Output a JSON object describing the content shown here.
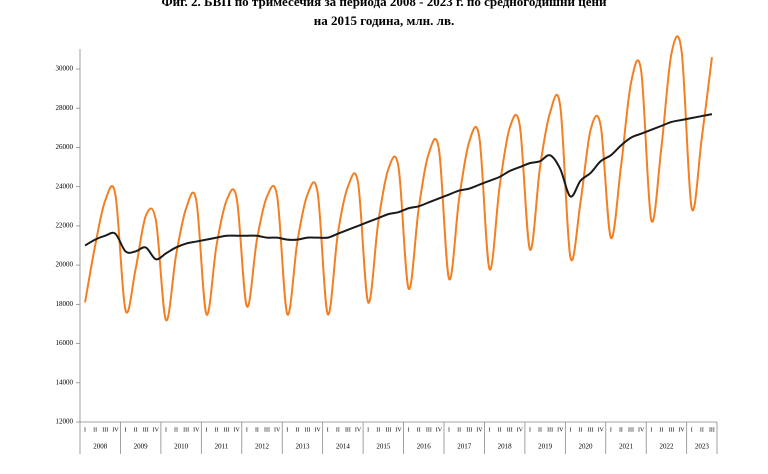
{
  "chart_data": {
    "type": "line",
    "title": [
      "Фиг. 2. БВП по тримесечия за периода 2008 - 2023 г. по средногодишни цени",
      "на 2015 година, млн. лв."
    ],
    "categories": [
      "I",
      "II",
      "III",
      "IV",
      "I",
      "II",
      "III",
      "IV",
      "I",
      "II",
      "III",
      "IV",
      "I",
      "II",
      "III",
      "IV",
      "I",
      "II",
      "III",
      "IV",
      "I",
      "II",
      "III",
      "IV",
      "I",
      "II",
      "III",
      "IV",
      "I",
      "II",
      "III",
      "IV",
      "I",
      "II",
      "III",
      "IV",
      "I",
      "II",
      "III",
      "IV",
      "I",
      "II",
      "III",
      "IV",
      "I",
      "II",
      "III",
      "IV",
      "I",
      "II",
      "III",
      "IV",
      "I",
      "II",
      "III",
      "IV",
      "I",
      "II",
      "III",
      "IV",
      "I",
      "II",
      "III"
    ],
    "years": [
      "2008",
      "2009",
      "2010",
      "2011",
      "2012",
      "2013",
      "2014",
      "2015",
      "2016",
      "2017",
      "2018",
      "2019",
      "2020",
      "2021",
      "2022",
      "2023"
    ],
    "series": [
      {
        "color": "#f28022",
        "values": [
          18100,
          21000,
          23300,
          23600,
          17700,
          19800,
          22500,
          22300,
          17200,
          20500,
          22900,
          23300,
          17500,
          21000,
          23300,
          23400,
          17900,
          21300,
          23500,
          23500,
          17500,
          21200,
          23600,
          23700,
          17500,
          21600,
          24000,
          24200,
          18100,
          22200,
          24900,
          25000,
          18800,
          22900,
          25700,
          25900,
          19300,
          23400,
          26300,
          26500,
          19800,
          24000,
          27000,
          27100,
          20800,
          25000,
          27800,
          28100,
          20400,
          23200,
          26900,
          27100,
          21400,
          25000,
          29300,
          29900,
          22300,
          26000,
          30800,
          30900,
          22900,
          26500,
          30600
        ]
      },
      {
        "color": "#1a1a1a",
        "values": [
          21000,
          21300,
          21500,
          21600,
          20700,
          20700,
          20900,
          20300,
          20600,
          20900,
          21100,
          21200,
          21300,
          21400,
          21500,
          21500,
          21500,
          21500,
          21400,
          21400,
          21300,
          21300,
          21400,
          21400,
          21400,
          21600,
          21800,
          22000,
          22200,
          22400,
          22600,
          22700,
          22900,
          23000,
          23200,
          23400,
          23600,
          23800,
          23900,
          24100,
          24300,
          24500,
          24800,
          25000,
          25200,
          25300,
          25600,
          24900,
          23500,
          24300,
          24700,
          25300,
          25600,
          26100,
          26500,
          26700,
          26900,
          27100,
          27300,
          27400,
          27500,
          27600,
          27700
        ]
      }
    ],
    "ylim": [
      12000,
      30000
    ],
    "yticks": [
      12000,
      14000,
      16000,
      18000,
      20000,
      22000,
      24000,
      26000,
      28000,
      30000
    ]
  }
}
